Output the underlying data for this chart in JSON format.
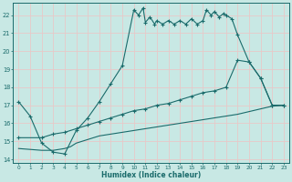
{
  "xlabel": "Humidex (Indice chaleur)",
  "bg_color": "#c8e8e4",
  "grid_color": "#e8c8c8",
  "line_color": "#1a6b6b",
  "xlim": [
    -0.5,
    23.5
  ],
  "ylim": [
    13.8,
    22.7
  ],
  "yticks": [
    14,
    15,
    16,
    17,
    18,
    19,
    20,
    21,
    22
  ],
  "xticks": [
    0,
    1,
    2,
    3,
    4,
    5,
    6,
    7,
    8,
    9,
    10,
    11,
    12,
    13,
    14,
    15,
    16,
    17,
    18,
    19,
    20,
    21,
    22,
    23
  ],
  "line1_x": [
    0,
    1,
    2,
    3,
    4,
    5,
    6,
    7,
    8,
    9,
    10,
    10.4,
    10.8,
    11,
    11.4,
    11.8,
    12,
    12.5,
    13,
    13.5,
    14,
    14.5,
    15,
    15.5,
    16,
    16.3,
    16.7,
    17,
    17.4,
    17.8,
    18,
    18.5,
    19,
    20,
    21,
    22,
    23
  ],
  "line1_y": [
    17.2,
    16.4,
    14.9,
    14.4,
    14.3,
    15.6,
    16.3,
    17.2,
    18.2,
    19.2,
    22.3,
    22.0,
    22.4,
    21.6,
    21.9,
    21.5,
    21.7,
    21.5,
    21.7,
    21.5,
    21.7,
    21.5,
    21.8,
    21.5,
    21.7,
    22.3,
    22.0,
    22.2,
    21.9,
    22.1,
    22.0,
    21.8,
    20.9,
    19.4,
    18.5,
    17.0,
    17.0
  ],
  "line2_x": [
    0,
    2,
    3,
    4,
    5,
    6,
    7,
    8,
    9,
    10,
    11,
    12,
    13,
    14,
    15,
    16,
    17,
    18,
    19,
    20,
    21,
    22,
    23
  ],
  "line2_y": [
    15.2,
    15.2,
    15.4,
    15.5,
    15.7,
    15.9,
    16.1,
    16.3,
    16.5,
    16.7,
    16.8,
    17.0,
    17.1,
    17.3,
    17.5,
    17.7,
    17.8,
    18.0,
    19.5,
    19.4,
    18.5,
    17.0,
    17.0
  ],
  "line3_x": [
    0,
    2,
    3,
    4,
    4.5,
    5,
    6,
    7,
    8,
    9,
    10,
    11,
    12,
    13,
    14,
    15,
    16,
    17,
    18,
    19,
    20,
    21,
    22,
    23
  ],
  "line3_y": [
    14.6,
    14.5,
    14.5,
    14.6,
    14.7,
    14.9,
    15.1,
    15.3,
    15.4,
    15.5,
    15.6,
    15.7,
    15.8,
    15.9,
    16.0,
    16.1,
    16.2,
    16.3,
    16.4,
    16.5,
    16.65,
    16.8,
    16.95,
    17.0
  ]
}
